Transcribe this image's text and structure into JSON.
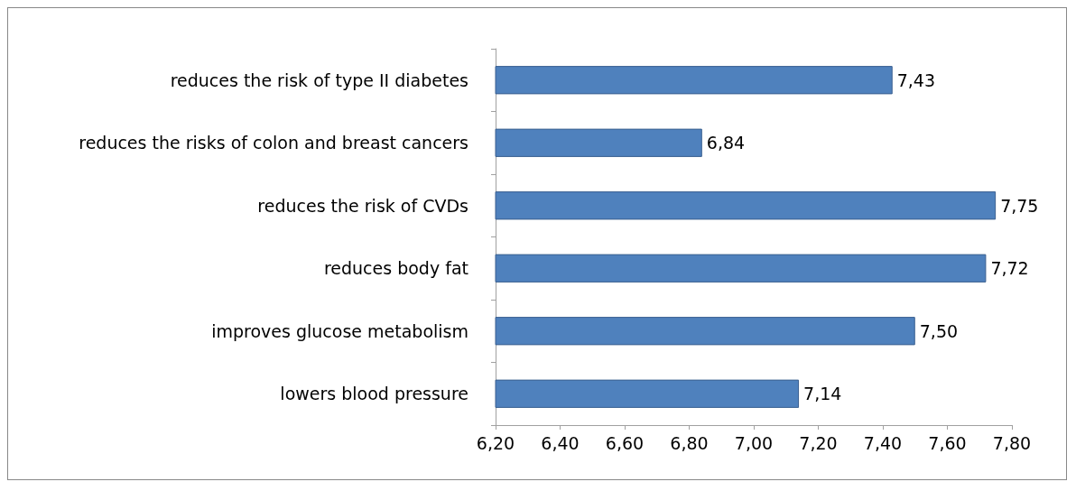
{
  "chart_data": {
    "type": "bar",
    "orientation": "horizontal",
    "categories": [
      "reduces the risk of type II diabetes",
      "reduces the risks of colon and breast cancers",
      "reduces the risk of CVDs",
      "reduces body fat",
      "improves glucose metabolism",
      "lowers blood pressure"
    ],
    "values": [
      7.43,
      6.84,
      7.75,
      7.72,
      7.5,
      7.14
    ],
    "value_labels": [
      "7,43",
      "6,84",
      "7,75",
      "7,72",
      "7,50",
      "7,14"
    ],
    "color": "#4f81bd",
    "xlim": [
      6.2,
      7.8
    ],
    "xticks": [
      {
        "value": 6.2,
        "label": "6,20"
      },
      {
        "value": 6.4,
        "label": "6,40"
      },
      {
        "value": 6.6,
        "label": "6,60"
      },
      {
        "value": 6.8,
        "label": "6,80"
      },
      {
        "value": 7.0,
        "label": "7,00"
      },
      {
        "value": 7.2,
        "label": "7,20"
      },
      {
        "value": 7.4,
        "label": "7,40"
      },
      {
        "value": 7.6,
        "label": "7,60"
      },
      {
        "value": 7.8,
        "label": "7,80"
      }
    ],
    "grid": false
  }
}
